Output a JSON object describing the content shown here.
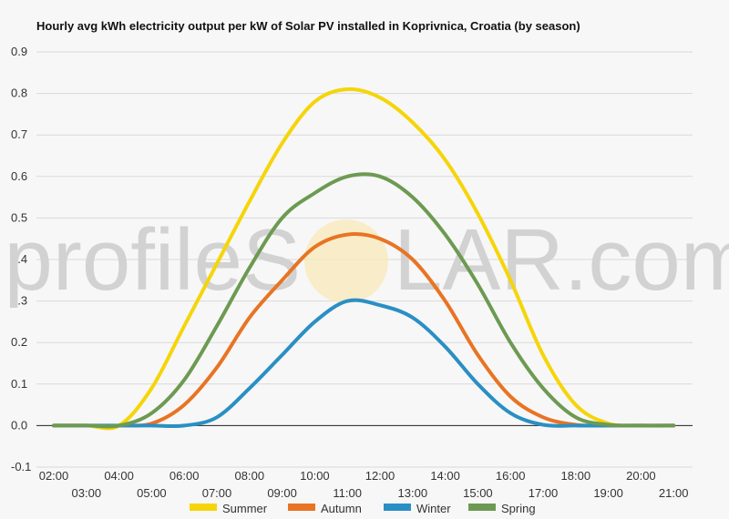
{
  "chart_data": {
    "type": "line",
    "title": "Hourly avg kWh electricity output per kW of Solar PV installed in Koprivnica, Croatia (by season)",
    "watermark": "profileSOLAR.com",
    "watermark_parts": [
      "profileS",
      "LAR.com"
    ],
    "xlabel": "",
    "ylabel": "",
    "ylim": [
      -0.1,
      0.9
    ],
    "y_ticks": [
      -0.1,
      0.0,
      0.1,
      0.2,
      0.3,
      0.4,
      0.5,
      0.6,
      0.7,
      0.8,
      0.9
    ],
    "y_tick_labels": [
      "-0.1",
      "0.0",
      "0.1",
      "0.2",
      "0.3",
      "0.4",
      "0.5",
      "0.6",
      "0.7",
      "0.8",
      "0.9"
    ],
    "x": [
      "02:00",
      "03:00",
      "04:00",
      "05:00",
      "06:00",
      "07:00",
      "08:00",
      "09:00",
      "10:00",
      "11:00",
      "12:00",
      "13:00",
      "14:00",
      "15:00",
      "16:00",
      "17:00",
      "18:00",
      "19:00",
      "20:00",
      "21:00"
    ],
    "legend_position": "bottom",
    "grid": true,
    "series": [
      {
        "name": "Summer",
        "color": "#f5d50a",
        "values": [
          0,
          0,
          0,
          0.09,
          0.24,
          0.39,
          0.54,
          0.68,
          0.78,
          0.81,
          0.79,
          0.73,
          0.64,
          0.51,
          0.35,
          0.17,
          0.05,
          0.005,
          0,
          0
        ]
      },
      {
        "name": "Autumn",
        "color": "#e87424",
        "values": [
          0,
          0,
          0,
          0.005,
          0.05,
          0.14,
          0.26,
          0.35,
          0.43,
          0.46,
          0.45,
          0.4,
          0.3,
          0.17,
          0.07,
          0.02,
          0.002,
          0,
          0,
          0
        ]
      },
      {
        "name": "Winter",
        "color": "#2a8fc4",
        "values": [
          0,
          0,
          0,
          0,
          0,
          0.02,
          0.09,
          0.17,
          0.25,
          0.3,
          0.29,
          0.26,
          0.19,
          0.1,
          0.03,
          0.002,
          0,
          0,
          0,
          0
        ]
      },
      {
        "name": "Spring",
        "color": "#6d9a52",
        "values": [
          0,
          0,
          0,
          0.03,
          0.11,
          0.24,
          0.38,
          0.5,
          0.56,
          0.6,
          0.6,
          0.55,
          0.46,
          0.34,
          0.2,
          0.09,
          0.02,
          0.002,
          0,
          0
        ]
      }
    ]
  }
}
